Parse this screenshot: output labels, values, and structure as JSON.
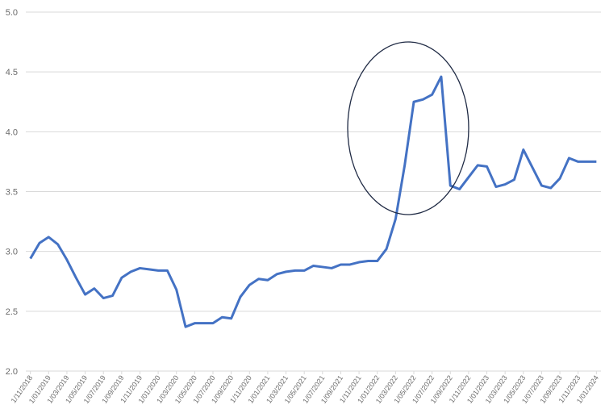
{
  "chart_data": {
    "type": "line",
    "title": "",
    "xlabel": "",
    "ylabel": "",
    "ylim": [
      2.0,
      5.0
    ],
    "yticks": [
      "2.0",
      "2.5",
      "3.0",
      "3.5",
      "4.0",
      "4.5",
      "5.0"
    ],
    "grid": "horizontal",
    "line_color": "#4472C4",
    "annotation": {
      "shape": "ellipse",
      "note": "hand-drawn ellipse around the 2022 spike",
      "color": "#1f2a44"
    },
    "x_tick_labels": [
      "1/11/2018",
      "1/01/2019",
      "1/03/2019",
      "1/05/2019",
      "1/07/2019",
      "1/09/2019",
      "1/11/2019",
      "1/01/2020",
      "1/03/2020",
      "1/05/2020",
      "1/07/2020",
      "1/09/2020",
      "1/11/2020",
      "1/01/2021",
      "1/03/2021",
      "1/05/2021",
      "1/07/2021",
      "1/09/2021",
      "1/11/2021",
      "1/01/2022",
      "1/03/2022",
      "1/05/2022",
      "1/07/2022",
      "1/09/2022",
      "1/11/2022",
      "1/01/2023",
      "1/03/2023",
      "1/05/2023",
      "1/07/2023",
      "1/09/2023",
      "1/11/2023",
      "1/01/2024"
    ],
    "series": [
      {
        "values": [
          2.94,
          3.07,
          3.12,
          3.06,
          2.93,
          2.78,
          2.64,
          2.69,
          2.61,
          2.63,
          2.78,
          2.83,
          2.86,
          2.85,
          2.84,
          2.84,
          2.68,
          2.37,
          2.4,
          2.4,
          2.4,
          2.45,
          2.44,
          2.62,
          2.72,
          2.77,
          2.76,
          2.81,
          2.83,
          2.84,
          2.84,
          2.88,
          2.87,
          2.86,
          2.89,
          2.89,
          2.91,
          2.92,
          2.92,
          3.02,
          3.27,
          3.72,
          4.25,
          4.27,
          4.31,
          4.46,
          3.55,
          3.52,
          3.62,
          3.72,
          3.71,
          3.54,
          3.56,
          3.6,
          3.85,
          3.7,
          3.55,
          3.53,
          3.61,
          3.78,
          3.75,
          3.75,
          3.75
        ]
      }
    ]
  }
}
